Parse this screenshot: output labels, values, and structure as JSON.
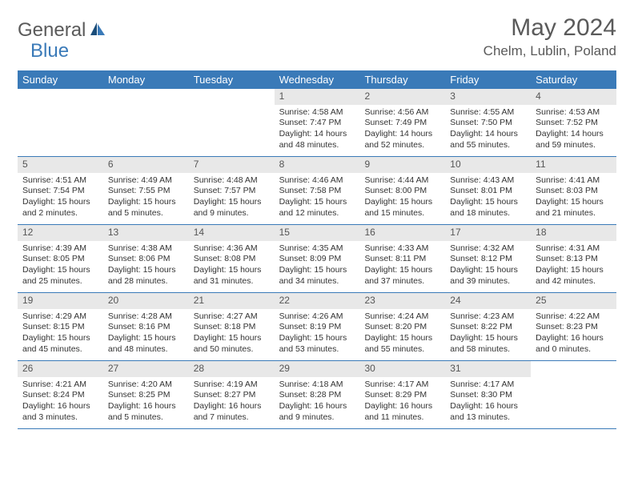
{
  "logo": {
    "text1": "General",
    "text2": "Blue"
  },
  "title": "May 2024",
  "location": "Chelm, Lublin, Poland",
  "colors": {
    "accent": "#3a7ab8",
    "daynum_bg": "#e8e8e8",
    "text": "#333333",
    "header_text": "#ffffff"
  },
  "dayHeaders": [
    "Sunday",
    "Monday",
    "Tuesday",
    "Wednesday",
    "Thursday",
    "Friday",
    "Saturday"
  ],
  "weeks": [
    [
      null,
      null,
      null,
      {
        "n": "1",
        "sr": "Sunrise: 4:58 AM",
        "ss": "Sunset: 7:47 PM",
        "dl1": "Daylight: 14 hours",
        "dl2": "and 48 minutes."
      },
      {
        "n": "2",
        "sr": "Sunrise: 4:56 AM",
        "ss": "Sunset: 7:49 PM",
        "dl1": "Daylight: 14 hours",
        "dl2": "and 52 minutes."
      },
      {
        "n": "3",
        "sr": "Sunrise: 4:55 AM",
        "ss": "Sunset: 7:50 PM",
        "dl1": "Daylight: 14 hours",
        "dl2": "and 55 minutes."
      },
      {
        "n": "4",
        "sr": "Sunrise: 4:53 AM",
        "ss": "Sunset: 7:52 PM",
        "dl1": "Daylight: 14 hours",
        "dl2": "and 59 minutes."
      }
    ],
    [
      {
        "n": "5",
        "sr": "Sunrise: 4:51 AM",
        "ss": "Sunset: 7:54 PM",
        "dl1": "Daylight: 15 hours",
        "dl2": "and 2 minutes."
      },
      {
        "n": "6",
        "sr": "Sunrise: 4:49 AM",
        "ss": "Sunset: 7:55 PM",
        "dl1": "Daylight: 15 hours",
        "dl2": "and 5 minutes."
      },
      {
        "n": "7",
        "sr": "Sunrise: 4:48 AM",
        "ss": "Sunset: 7:57 PM",
        "dl1": "Daylight: 15 hours",
        "dl2": "and 9 minutes."
      },
      {
        "n": "8",
        "sr": "Sunrise: 4:46 AM",
        "ss": "Sunset: 7:58 PM",
        "dl1": "Daylight: 15 hours",
        "dl2": "and 12 minutes."
      },
      {
        "n": "9",
        "sr": "Sunrise: 4:44 AM",
        "ss": "Sunset: 8:00 PM",
        "dl1": "Daylight: 15 hours",
        "dl2": "and 15 minutes."
      },
      {
        "n": "10",
        "sr": "Sunrise: 4:43 AM",
        "ss": "Sunset: 8:01 PM",
        "dl1": "Daylight: 15 hours",
        "dl2": "and 18 minutes."
      },
      {
        "n": "11",
        "sr": "Sunrise: 4:41 AM",
        "ss": "Sunset: 8:03 PM",
        "dl1": "Daylight: 15 hours",
        "dl2": "and 21 minutes."
      }
    ],
    [
      {
        "n": "12",
        "sr": "Sunrise: 4:39 AM",
        "ss": "Sunset: 8:05 PM",
        "dl1": "Daylight: 15 hours",
        "dl2": "and 25 minutes."
      },
      {
        "n": "13",
        "sr": "Sunrise: 4:38 AM",
        "ss": "Sunset: 8:06 PM",
        "dl1": "Daylight: 15 hours",
        "dl2": "and 28 minutes."
      },
      {
        "n": "14",
        "sr": "Sunrise: 4:36 AM",
        "ss": "Sunset: 8:08 PM",
        "dl1": "Daylight: 15 hours",
        "dl2": "and 31 minutes."
      },
      {
        "n": "15",
        "sr": "Sunrise: 4:35 AM",
        "ss": "Sunset: 8:09 PM",
        "dl1": "Daylight: 15 hours",
        "dl2": "and 34 minutes."
      },
      {
        "n": "16",
        "sr": "Sunrise: 4:33 AM",
        "ss": "Sunset: 8:11 PM",
        "dl1": "Daylight: 15 hours",
        "dl2": "and 37 minutes."
      },
      {
        "n": "17",
        "sr": "Sunrise: 4:32 AM",
        "ss": "Sunset: 8:12 PM",
        "dl1": "Daylight: 15 hours",
        "dl2": "and 39 minutes."
      },
      {
        "n": "18",
        "sr": "Sunrise: 4:31 AM",
        "ss": "Sunset: 8:13 PM",
        "dl1": "Daylight: 15 hours",
        "dl2": "and 42 minutes."
      }
    ],
    [
      {
        "n": "19",
        "sr": "Sunrise: 4:29 AM",
        "ss": "Sunset: 8:15 PM",
        "dl1": "Daylight: 15 hours",
        "dl2": "and 45 minutes."
      },
      {
        "n": "20",
        "sr": "Sunrise: 4:28 AM",
        "ss": "Sunset: 8:16 PM",
        "dl1": "Daylight: 15 hours",
        "dl2": "and 48 minutes."
      },
      {
        "n": "21",
        "sr": "Sunrise: 4:27 AM",
        "ss": "Sunset: 8:18 PM",
        "dl1": "Daylight: 15 hours",
        "dl2": "and 50 minutes."
      },
      {
        "n": "22",
        "sr": "Sunrise: 4:26 AM",
        "ss": "Sunset: 8:19 PM",
        "dl1": "Daylight: 15 hours",
        "dl2": "and 53 minutes."
      },
      {
        "n": "23",
        "sr": "Sunrise: 4:24 AM",
        "ss": "Sunset: 8:20 PM",
        "dl1": "Daylight: 15 hours",
        "dl2": "and 55 minutes."
      },
      {
        "n": "24",
        "sr": "Sunrise: 4:23 AM",
        "ss": "Sunset: 8:22 PM",
        "dl1": "Daylight: 15 hours",
        "dl2": "and 58 minutes."
      },
      {
        "n": "25",
        "sr": "Sunrise: 4:22 AM",
        "ss": "Sunset: 8:23 PM",
        "dl1": "Daylight: 16 hours",
        "dl2": "and 0 minutes."
      }
    ],
    [
      {
        "n": "26",
        "sr": "Sunrise: 4:21 AM",
        "ss": "Sunset: 8:24 PM",
        "dl1": "Daylight: 16 hours",
        "dl2": "and 3 minutes."
      },
      {
        "n": "27",
        "sr": "Sunrise: 4:20 AM",
        "ss": "Sunset: 8:25 PM",
        "dl1": "Daylight: 16 hours",
        "dl2": "and 5 minutes."
      },
      {
        "n": "28",
        "sr": "Sunrise: 4:19 AM",
        "ss": "Sunset: 8:27 PM",
        "dl1": "Daylight: 16 hours",
        "dl2": "and 7 minutes."
      },
      {
        "n": "29",
        "sr": "Sunrise: 4:18 AM",
        "ss": "Sunset: 8:28 PM",
        "dl1": "Daylight: 16 hours",
        "dl2": "and 9 minutes."
      },
      {
        "n": "30",
        "sr": "Sunrise: 4:17 AM",
        "ss": "Sunset: 8:29 PM",
        "dl1": "Daylight: 16 hours",
        "dl2": "and 11 minutes."
      },
      {
        "n": "31",
        "sr": "Sunrise: 4:17 AM",
        "ss": "Sunset: 8:30 PM",
        "dl1": "Daylight: 16 hours",
        "dl2": "and 13 minutes."
      },
      null
    ]
  ]
}
